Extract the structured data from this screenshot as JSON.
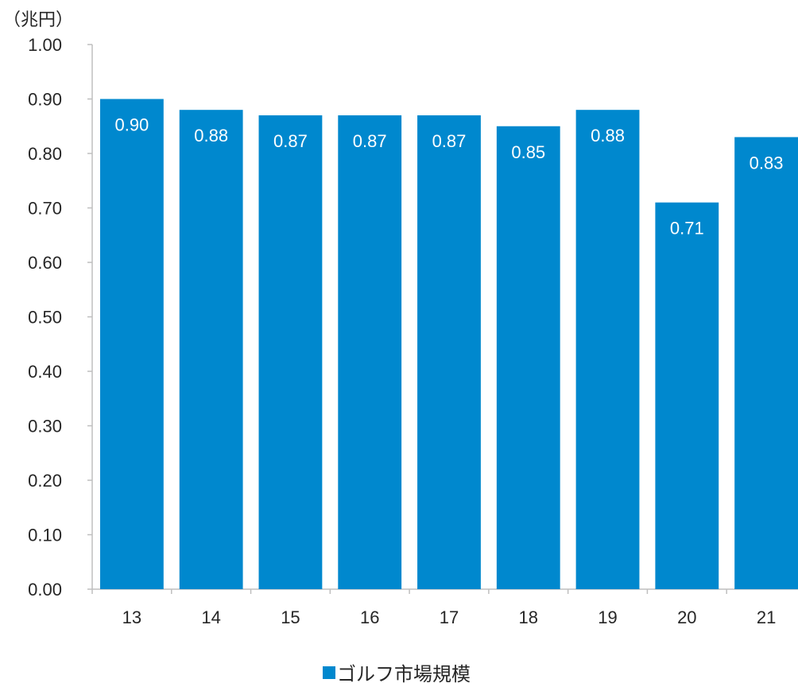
{
  "chart_data": {
    "type": "bar",
    "unit_label": "（兆円）",
    "categories": [
      "13",
      "14",
      "15",
      "16",
      "17",
      "18",
      "19",
      "20",
      "21"
    ],
    "series": [
      {
        "name": "ゴルフ市場規模",
        "values": [
          0.9,
          0.88,
          0.87,
          0.87,
          0.87,
          0.85,
          0.88,
          0.71,
          0.83
        ],
        "data_labels": [
          "0.90",
          "0.88",
          "0.87",
          "0.87",
          "0.87",
          "0.85",
          "0.88",
          "0.71",
          "0.83"
        ],
        "color": "#0088CE"
      }
    ],
    "ylim": [
      0,
      1.0
    ],
    "y_ticks": [
      "0.00",
      "0.10",
      "0.20",
      "0.30",
      "0.40",
      "0.50",
      "0.60",
      "0.70",
      "0.80",
      "0.90",
      "1.00"
    ],
    "grid": false,
    "legend": {
      "position": "bottom",
      "label": "ゴルフ市場規模"
    }
  }
}
